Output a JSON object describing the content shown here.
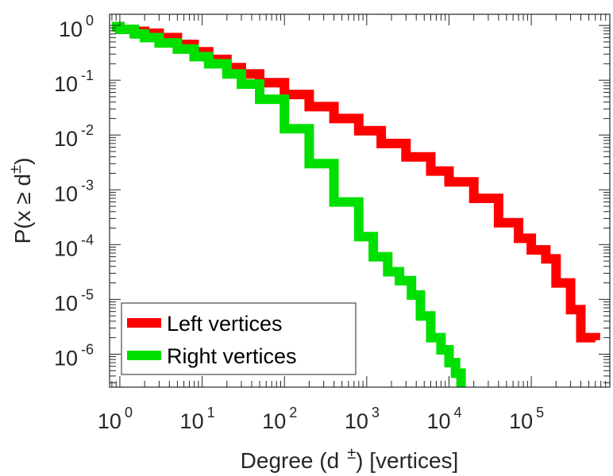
{
  "chart_data": {
    "type": "line",
    "title": "",
    "xlabel": "Degree (d  ±) [vertices]",
    "xlabel_parts": {
      "prefix": "Degree (d",
      "sup": "±",
      "suffix": ") [vertices]"
    },
    "ylabel": "P(x ≥ d±)",
    "ylabel_parts": {
      "prefix": "P(x ",
      "rel": "≥",
      "mid": " d",
      "sup": "±",
      "suffix": ")"
    },
    "x_scale": "log",
    "y_scale": "log",
    "xlim": [
      0.75,
      900000
    ],
    "ylim": [
      2.5e-07,
      1.6
    ],
    "x_ticks": [
      {
        "base": "10",
        "exp": "0",
        "value": 1
      },
      {
        "base": "10",
        "exp": "1",
        "value": 10
      },
      {
        "base": "10",
        "exp": "2",
        "value": 100
      },
      {
        "base": "10",
        "exp": "3",
        "value": 1000
      },
      {
        "base": "10",
        "exp": "4",
        "value": 10000
      },
      {
        "base": "10",
        "exp": "5",
        "value": 100000
      }
    ],
    "y_ticks": [
      {
        "base": "10",
        "exp": "0",
        "value": 1
      },
      {
        "base": "10",
        "exp": "-1",
        "value": 0.1
      },
      {
        "base": "10",
        "exp": "-2",
        "value": 0.01
      },
      {
        "base": "10",
        "exp": "-3",
        "value": 0.001
      },
      {
        "base": "10",
        "exp": "-4",
        "value": 0.0001
      },
      {
        "base": "10",
        "exp": "-5",
        "value": 1e-05
      },
      {
        "base": "10",
        "exp": "-6",
        "value": 1e-06
      }
    ],
    "grid": false,
    "legend_position": "bottom-left",
    "series": [
      {
        "name": "Left vertices",
        "color": "#ff0000",
        "x": [
          0.8,
          1,
          1.5,
          2,
          3,
          5,
          8,
          12,
          20,
          30,
          50,
          100,
          200,
          400,
          800,
          1500,
          3000,
          6000,
          10000,
          20000,
          40000,
          70000,
          100000,
          150000,
          200000,
          300000,
          400000,
          600000
        ],
        "y": [
          0.95,
          0.85,
          0.78,
          0.72,
          0.6,
          0.45,
          0.33,
          0.24,
          0.17,
          0.13,
          0.09,
          0.055,
          0.033,
          0.02,
          0.012,
          0.007,
          0.004,
          0.0022,
          0.0014,
          0.0007,
          0.00025,
          0.00013,
          8e-05,
          5.5e-05,
          2e-05,
          6.5e-06,
          2e-06,
          1.8e-06
        ]
      },
      {
        "name": "Right vertices",
        "color": "#00e000",
        "x": [
          0.8,
          1,
          1.5,
          2,
          3,
          5,
          8,
          12,
          20,
          30,
          50,
          100,
          200,
          400,
          800,
          1200,
          1800,
          2500,
          3500,
          4500,
          6000,
          8000,
          10000,
          12000,
          14000
        ],
        "y": [
          0.95,
          0.85,
          0.7,
          0.6,
          0.48,
          0.37,
          0.27,
          0.2,
          0.13,
          0.085,
          0.045,
          0.013,
          0.003,
          0.0006,
          0.00014,
          6e-05,
          3.2e-05,
          2.2e-05,
          1.2e-05,
          5e-06,
          2e-06,
          1.2e-06,
          7e-07,
          4.5e-07,
          2.5e-07
        ]
      }
    ]
  }
}
